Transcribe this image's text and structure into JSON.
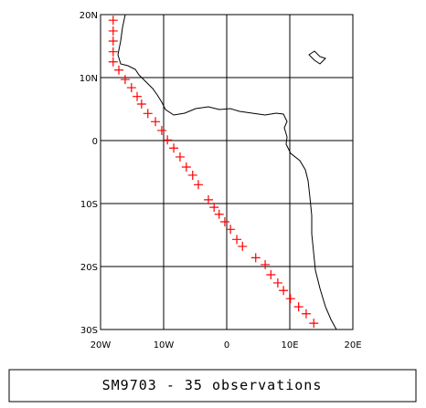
{
  "chart_data": {
    "type": "scatter",
    "title": "SM9703 - 35 observations",
    "color": "#ff0000",
    "grid": true,
    "xlim": [
      -20,
      20
    ],
    "ylim": [
      -30,
      20
    ],
    "xticks": [
      {
        "value": -20,
        "label": "20W"
      },
      {
        "value": -10,
        "label": "10W"
      },
      0,
      {
        "value": 10,
        "label": "10E"
      },
      {
        "value": 20,
        "label": "20E"
      }
    ],
    "yticks": [
      {
        "value": 20,
        "label": "20N"
      },
      {
        "value": 10,
        "label": "10N"
      },
      0,
      {
        "value": -10,
        "label": "10S"
      },
      {
        "value": -20,
        "label": "20S"
      },
      {
        "value": -30,
        "label": "30S"
      }
    ],
    "x": [
      -18,
      -18,
      -18,
      -18,
      -18,
      -17.1,
      -16.1,
      -15.1,
      -14.2,
      -13.5,
      -12.5,
      -11.3,
      -10.3,
      -9.4,
      -8.4,
      -7.4,
      -6.4,
      -5.4,
      -4.5,
      -2.9,
      -2.0,
      -1.2,
      -0.3,
      0.6,
      1.6,
      2.5,
      4.6,
      6.1,
      7.0,
      8.1,
      9.0,
      10.1,
      11.4,
      12.6,
      13.8
    ],
    "values": [
      19.1,
      17.4,
      15.8,
      14.1,
      12.5,
      11.2,
      9.7,
      8.4,
      7.0,
      5.8,
      4.3,
      3.0,
      1.6,
      0.1,
      -1.2,
      -2.6,
      -4.2,
      -5.5,
      -7.0,
      -9.4,
      -10.6,
      -11.7,
      -12.9,
      -14.1,
      -15.7,
      -16.8,
      -18.6,
      -19.7,
      -21.3,
      -22.6,
      -23.8,
      -25.1,
      -26.4,
      -27.5,
      -29.0
    ]
  }
}
